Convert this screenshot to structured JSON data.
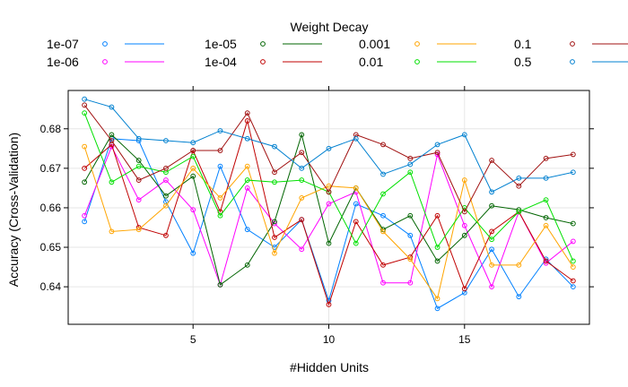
{
  "chart_data": {
    "type": "line",
    "xlabel": "#Hidden Units",
    "ylabel": "Accuracy (Cross-Validation)",
    "legend_title": "Weight Decay",
    "legend_position": "top",
    "grid": true,
    "xlim": [
      0.4,
      19.6
    ],
    "ylim": [
      0.6305,
      0.6897
    ],
    "xticks": [
      5,
      10,
      15
    ],
    "yticks": [
      0.64,
      0.65,
      0.66,
      0.67,
      0.68
    ],
    "x": [
      1,
      2,
      3,
      4,
      5,
      6,
      7,
      8,
      9,
      10,
      11,
      12,
      13,
      14,
      15,
      16,
      17,
      18,
      19
    ],
    "series": [
      {
        "name": "1e-07",
        "color": "#0080ff",
        "values": [
          0.6565,
          0.6775,
          0.677,
          0.6615,
          0.6485,
          0.6705,
          0.6545,
          0.65,
          0.657,
          0.6365,
          0.661,
          0.658,
          0.653,
          0.6345,
          0.6385,
          0.6495,
          0.6375,
          0.647,
          0.64
        ]
      },
      {
        "name": "1e-06",
        "color": "#ff00ff",
        "values": [
          0.658,
          0.6755,
          0.662,
          0.667,
          0.6595,
          0.6405,
          0.665,
          0.656,
          0.6495,
          0.661,
          0.664,
          0.641,
          0.641,
          0.6735,
          0.6555,
          0.64,
          0.659,
          0.646,
          0.6515
        ]
      },
      {
        "name": "1e-05",
        "color": "#006400",
        "values": [
          0.6665,
          0.6785,
          0.672,
          0.663,
          0.668,
          0.6405,
          0.6455,
          0.6565,
          0.6785,
          0.651,
          0.665,
          0.6545,
          0.658,
          0.6465,
          0.653,
          0.6605,
          0.6595,
          0.6575,
          0.656
        ]
      },
      {
        "name": "1e-04",
        "color": "#c00000",
        "values": [
          0.67,
          0.676,
          0.655,
          0.653,
          0.6745,
          0.659,
          0.682,
          0.6525,
          0.657,
          0.6355,
          0.6565,
          0.6455,
          0.6475,
          0.658,
          0.6395,
          0.654,
          0.659,
          0.6465,
          0.6415
        ]
      },
      {
        "name": "0.001",
        "color": "#ffa500",
        "values": [
          0.6755,
          0.654,
          0.6545,
          0.6605,
          0.67,
          0.6625,
          0.6705,
          0.6485,
          0.6625,
          0.6655,
          0.665,
          0.654,
          0.647,
          0.637,
          0.667,
          0.6455,
          0.6455,
          0.6555,
          0.645
        ]
      },
      {
        "name": "0.01",
        "color": "#00e000",
        "values": [
          0.684,
          0.6665,
          0.6705,
          0.669,
          0.673,
          0.658,
          0.667,
          0.6665,
          0.667,
          0.664,
          0.651,
          0.6635,
          0.669,
          0.65,
          0.66,
          0.652,
          0.659,
          0.662,
          0.6465
        ]
      },
      {
        "name": "0.1",
        "color": "#a01010",
        "values": [
          0.686,
          0.677,
          0.667,
          0.67,
          0.6745,
          0.6745,
          0.684,
          0.669,
          0.674,
          0.664,
          0.6785,
          0.676,
          0.6725,
          0.674,
          0.659,
          0.672,
          0.6655,
          0.6725,
          0.6735
        ]
      },
      {
        "name": "0.5",
        "color": "#0080d0",
        "values": [
          0.6875,
          0.6855,
          0.6775,
          0.677,
          0.6765,
          0.6795,
          0.6775,
          0.6755,
          0.67,
          0.675,
          0.6775,
          0.6685,
          0.671,
          0.676,
          0.6785,
          0.664,
          0.6675,
          0.6675,
          0.669
        ]
      }
    ]
  }
}
